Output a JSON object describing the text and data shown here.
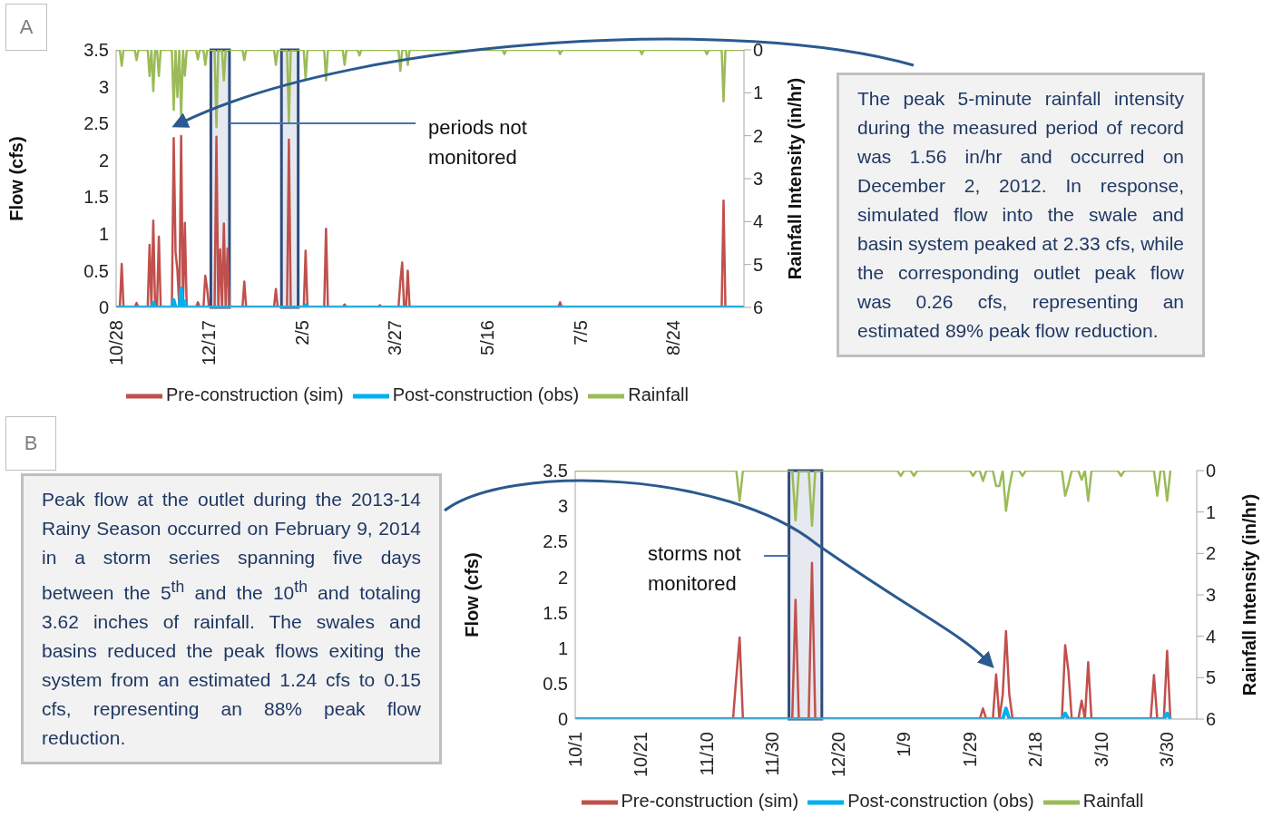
{
  "chart_data": [
    {
      "type": "line",
      "title": "A",
      "ylabel": "Flow (cfs)",
      "y2label": "Rainfall Intensity (in/hr)",
      "xlim": [
        "2012-10-28",
        "2013-10-01"
      ],
      "xticks": [
        {
          "value": "2012-10-28",
          "label": "10/28"
        },
        {
          "value": "2012-12-17",
          "label": "12/17"
        },
        {
          "value": "2013-02-05",
          "label": "2/5"
        },
        {
          "value": "2013-03-27",
          "label": "3/27"
        },
        {
          "value": "2013-05-16",
          "label": "5/16"
        },
        {
          "value": "2013-07-05",
          "label": "7/5"
        },
        {
          "value": "2013-08-24",
          "label": "8/24"
        }
      ],
      "ylim": [
        0,
        3.5
      ],
      "yticks": [
        0,
        0.5,
        1,
        1.5,
        2,
        2.5,
        3,
        3.5
      ],
      "y2lim": [
        6,
        0
      ],
      "y2ticks": [
        0,
        1,
        2,
        3,
        4,
        5,
        6
      ],
      "legend": "bottom",
      "series": [
        {
          "name": "Pre-construction (sim)",
          "color": "#c0504d",
          "x": [
            "2012-10-28",
            "2012-10-30",
            "2012-10-31",
            "2012-11-01",
            "2012-11-07",
            "2012-11-08",
            "2012-11-09",
            "2012-11-14",
            "2012-11-15",
            "2012-11-16",
            "2012-11-17",
            "2012-11-18",
            "2012-11-19",
            "2012-11-20",
            "2012-11-21",
            "2012-11-27",
            "2012-11-28",
            "2012-11-29",
            "2012-11-30",
            "2012-12-01",
            "2012-12-02",
            "2012-12-03",
            "2012-12-04",
            "2012-12-05",
            "2012-12-10",
            "2012-12-11",
            "2012-12-12",
            "2012-12-14",
            "2012-12-15",
            "2012-12-16",
            "2012-12-17",
            "2012-12-20",
            "2012-12-21",
            "2012-12-22",
            "2012-12-23",
            "2012-12-24",
            "2012-12-25",
            "2012-12-26",
            "2012-12-27",
            "2012-12-28",
            "2013-01-04",
            "2013-01-05",
            "2013-01-06",
            "2013-01-21",
            "2013-01-22",
            "2013-01-23",
            "2013-01-28",
            "2013-01-29",
            "2013-01-30",
            "2013-02-06",
            "2013-02-07",
            "2013-02-08",
            "2013-02-17",
            "2013-02-18",
            "2013-02-19",
            "2013-02-27",
            "2013-02-28",
            "2013-03-01",
            "2013-03-18",
            "2013-03-19",
            "2013-03-20",
            "2013-03-29",
            "2013-03-30",
            "2013-03-31",
            "2013-04-01",
            "2013-04-02",
            "2013-04-03",
            "2013-04-04",
            "2013-06-23",
            "2013-06-24",
            "2013-06-25",
            "2013-09-19",
            "2013-09-20",
            "2013-09-21",
            "2013-10-01"
          ],
          "values": [
            0,
            0,
            0.59,
            0,
            0,
            0.06,
            0,
            0,
            0.85,
            0,
            1.18,
            0,
            0,
            0.96,
            0,
            0,
            2.3,
            0.75,
            0.5,
            0,
            2.33,
            0,
            1.15,
            0,
            0,
            0.07,
            0,
            0,
            0.43,
            0.25,
            0,
            0,
            2.32,
            0,
            0.79,
            0,
            1.14,
            0,
            0.8,
            0,
            0,
            0.35,
            0,
            0,
            0.25,
            0,
            0,
            2.28,
            0,
            0,
            0.77,
            0,
            0,
            1.07,
            0,
            0,
            0.04,
            0,
            0,
            0.03,
            0,
            0,
            0.35,
            0.61,
            0,
            0,
            0.5,
            0,
            0,
            0.07,
            0,
            0,
            1.45,
            0,
            0
          ]
        },
        {
          "name": "Post-construction (obs)",
          "color": "#00b0f0",
          "x": [
            "2012-10-28",
            "2012-11-16",
            "2012-11-17",
            "2012-11-18",
            "2012-11-27",
            "2012-11-28",
            "2012-11-29",
            "2012-12-01",
            "2012-12-02",
            "2012-12-03",
            "2012-12-04",
            "2012-12-05",
            "2013-02-06",
            "2013-02-07",
            "2013-02-08",
            "2013-10-01"
          ],
          "values": [
            0,
            0,
            0.06,
            0,
            0,
            0.1,
            0,
            0,
            0.26,
            0,
            0.08,
            0,
            0,
            0.03,
            0,
            0
          ]
        },
        {
          "name": "Rainfall",
          "color": "#9bbb59",
          "axis": "y2",
          "x": [
            "2012-10-28",
            "2012-10-30",
            "2012-10-31",
            "2012-11-01",
            "2012-11-07",
            "2012-11-08",
            "2012-11-09",
            "2012-11-14",
            "2012-11-15",
            "2012-11-16",
            "2012-11-17",
            "2012-11-18",
            "2012-11-19",
            "2012-11-20",
            "2012-11-21",
            "2012-11-27",
            "2012-11-28",
            "2012-11-29",
            "2012-11-30",
            "2012-12-01",
            "2012-12-02",
            "2012-12-03",
            "2012-12-04",
            "2012-12-05",
            "2012-12-10",
            "2012-12-11",
            "2012-12-12",
            "2012-12-14",
            "2012-12-15",
            "2012-12-16",
            "2012-12-20",
            "2012-12-21",
            "2012-12-22",
            "2012-12-24",
            "2012-12-25",
            "2012-12-26",
            "2013-01-04",
            "2013-01-05",
            "2013-01-06",
            "2013-01-21",
            "2013-01-22",
            "2013-01-23",
            "2013-01-28",
            "2013-01-29",
            "2013-01-30",
            "2013-02-06",
            "2013-02-07",
            "2013-02-08",
            "2013-02-17",
            "2013-02-18",
            "2013-02-19",
            "2013-02-27",
            "2013-02-28",
            "2013-03-01",
            "2013-03-07",
            "2013-03-08",
            "2013-03-09",
            "2013-03-29",
            "2013-03-30",
            "2013-03-31",
            "2013-04-02",
            "2013-04-03",
            "2013-04-04",
            "2013-05-24",
            "2013-05-25",
            "2013-05-26",
            "2013-06-23",
            "2013-06-24",
            "2013-06-25",
            "2013-08-06",
            "2013-08-07",
            "2013-08-08",
            "2013-09-10",
            "2013-09-11",
            "2013-09-12",
            "2013-09-19",
            "2013-09-20",
            "2013-09-21",
            "2013-10-01"
          ],
          "values": [
            0,
            0,
            0.37,
            0,
            0,
            0.24,
            0,
            0,
            0.61,
            0,
            0.96,
            0,
            0,
            0.61,
            0,
            0,
            1.4,
            0,
            1.1,
            0,
            1.56,
            0,
            0.6,
            0,
            0,
            0.22,
            0,
            0,
            0.35,
            0,
            0,
            1.8,
            0,
            0,
            0.71,
            0,
            0,
            0.24,
            0,
            0,
            0.35,
            0,
            0,
            1.69,
            0,
            0,
            0.68,
            0,
            0,
            0.71,
            0,
            0,
            0.35,
            0,
            0,
            0.13,
            0,
            0,
            0.49,
            0,
            0,
            0.35,
            0,
            0,
            0.1,
            0,
            0,
            0.1,
            0,
            0,
            0.1,
            0,
            0,
            0.1,
            0,
            0,
            1.2,
            0,
            0
          ]
        }
      ],
      "bands": [
        {
          "axis": "x",
          "from": "2012-12-18",
          "to": "2012-12-28",
          "color": "#2f4b7c"
        },
        {
          "axis": "x",
          "from": "2013-01-25",
          "to": "2013-02-03",
          "color": "#2f4b7c"
        }
      ],
      "annotations": [
        {
          "text": "periods not monitored",
          "x": "2012-12-28",
          "y": 2.5
        }
      ]
    },
    {
      "type": "other",
      "annotations": [
        "The peak 5-minute rainfall intensity during the measured period of record was 1.56 in/hr and occurred on December 2, 2012. In response, simulated flow into the swale and basin system peaked at 2.33 cfs, while the corresponding outlet peak flow was 0.26 cfs, representing an estimated 89% peak flow reduction."
      ]
    },
    {
      "type": "other",
      "title": "B",
      "annotations": [
        "Peak flow at the outlet during the 2013-14 Rainy Season occurred on February 9, 2014 in a storm series spanning five days between the 5$^{th}$ and the 10$^{th}$ and totaling 3.62 inches of rainfall. The swales and basins reduced the peak flows exiting the system from an estimated 1.24 cfs to 0.15 cfs, representing an 88% peak flow reduction."
      ]
    },
    {
      "type": "line",
      "ylabel": "Flow (cfs)",
      "y2label": "Rainfall Intensity (in/hr)",
      "xlim": [
        "2013-10-01",
        "2014-04-08"
      ],
      "xticks": [
        {
          "value": "2013-10-01",
          "label": "10/1"
        },
        {
          "value": "2013-10-21",
          "label": "10/21"
        },
        {
          "value": "2013-11-10",
          "label": "11/10"
        },
        {
          "value": "2013-11-30",
          "label": "11/30"
        },
        {
          "value": "2013-12-20",
          "label": "12/20"
        },
        {
          "value": "2014-01-09",
          "label": "1/9"
        },
        {
          "value": "2014-01-29",
          "label": "1/29"
        },
        {
          "value": "2014-02-18",
          "label": "2/18"
        },
        {
          "value": "2014-03-10",
          "label": "3/10"
        },
        {
          "value": "2014-03-30",
          "label": "3/30"
        }
      ],
      "ylim": [
        0,
        3.5
      ],
      "yticks": [
        0,
        0.5,
        1,
        1.5,
        2,
        2.5,
        3,
        3.5
      ],
      "y2lim": [
        6,
        0
      ],
      "y2ticks": [
        0,
        1,
        2,
        3,
        4,
        5,
        6
      ],
      "legend": "bottom",
      "series": [
        {
          "name": "Pre-construction (sim)",
          "color": "#c0504d",
          "x": [
            "2013-10-01",
            "2013-11-18",
            "2013-11-19",
            "2013-11-20",
            "2013-11-21",
            "2013-12-06",
            "2013-12-07",
            "2013-12-08",
            "2013-12-11",
            "2013-12-12",
            "2013-12-13",
            "2014-02-01",
            "2014-02-02",
            "2014-02-03",
            "2014-02-05",
            "2014-02-06",
            "2014-02-07",
            "2014-02-08",
            "2014-02-09",
            "2014-02-10",
            "2014-02-11",
            "2014-02-26",
            "2014-02-27",
            "2014-02-28",
            "2014-03-01",
            "2014-03-03",
            "2014-03-04",
            "2014-03-05",
            "2014-03-06",
            "2014-03-07",
            "2014-03-25",
            "2014-03-26",
            "2014-03-27",
            "2014-03-29",
            "2014-03-30",
            "2014-03-31"
          ],
          "values": [
            0,
            0,
            0.6,
            1.15,
            0,
            0,
            1.68,
            0,
            0,
            2.2,
            0,
            0,
            0.15,
            0,
            0,
            0.63,
            0,
            0.34,
            1.24,
            0.35,
            0,
            0,
            1.04,
            0.67,
            0,
            0,
            0.26,
            0,
            0.8,
            0,
            0,
            0.62,
            0,
            0,
            0.96,
            0
          ]
        },
        {
          "name": "Post-construction (obs)",
          "color": "#00b0f0",
          "x": [
            "2013-10-01",
            "2014-02-08",
            "2014-02-09",
            "2014-02-10",
            "2014-02-26",
            "2014-02-27",
            "2014-02-28",
            "2014-03-29",
            "2014-03-30",
            "2014-03-31"
          ],
          "values": [
            0,
            0,
            0.15,
            0,
            0,
            0.08,
            0,
            0,
            0.08,
            0
          ]
        },
        {
          "name": "Rainfall",
          "color": "#9bbb59",
          "axis": "y2",
          "x": [
            "2013-10-01",
            "2013-11-19",
            "2013-11-20",
            "2013-11-21",
            "2013-12-06",
            "2013-12-07",
            "2013-12-08",
            "2013-12-11",
            "2013-12-12",
            "2013-12-13",
            "2014-01-07",
            "2014-01-08",
            "2014-01-09",
            "2014-01-11",
            "2014-01-12",
            "2014-01-13",
            "2014-01-29",
            "2014-01-30",
            "2014-01-31",
            "2014-02-01",
            "2014-02-02",
            "2014-02-03",
            "2014-02-05",
            "2014-02-06",
            "2014-02-07",
            "2014-02-08",
            "2014-02-09",
            "2014-02-10",
            "2014-02-11",
            "2014-02-13",
            "2014-02-14",
            "2014-02-15",
            "2014-02-26",
            "2014-02-27",
            "2014-02-28",
            "2014-03-01",
            "2014-03-03",
            "2014-03-04",
            "2014-03-05",
            "2014-03-06",
            "2014-03-07",
            "2014-03-15",
            "2014-03-16",
            "2014-03-17",
            "2014-03-26",
            "2014-03-27",
            "2014-03-28",
            "2014-03-29",
            "2014-03-30",
            "2014-03-31"
          ],
          "values": [
            0,
            0,
            0.73,
            0,
            0,
            1.2,
            0,
            0,
            1.33,
            0,
            0,
            0.13,
            0,
            0,
            0.13,
            0,
            0,
            0.13,
            0,
            0,
            0.25,
            0,
            0,
            0.37,
            0.37,
            0,
            0.97,
            0.4,
            0,
            0,
            0.13,
            0,
            0,
            0.61,
            0.33,
            0,
            0,
            0.22,
            0,
            0.73,
            0,
            0,
            0.13,
            0,
            0,
            0.61,
            0,
            0,
            0.73,
            0
          ]
        }
      ],
      "bands": [
        {
          "axis": "x",
          "from": "2013-12-05",
          "to": "2013-12-15",
          "color": "#2f4b7c"
        }
      ],
      "annotations": [
        {
          "text": "storms not monitored",
          "x": "2013-12-05",
          "y": 2.3
        }
      ]
    }
  ]
}
